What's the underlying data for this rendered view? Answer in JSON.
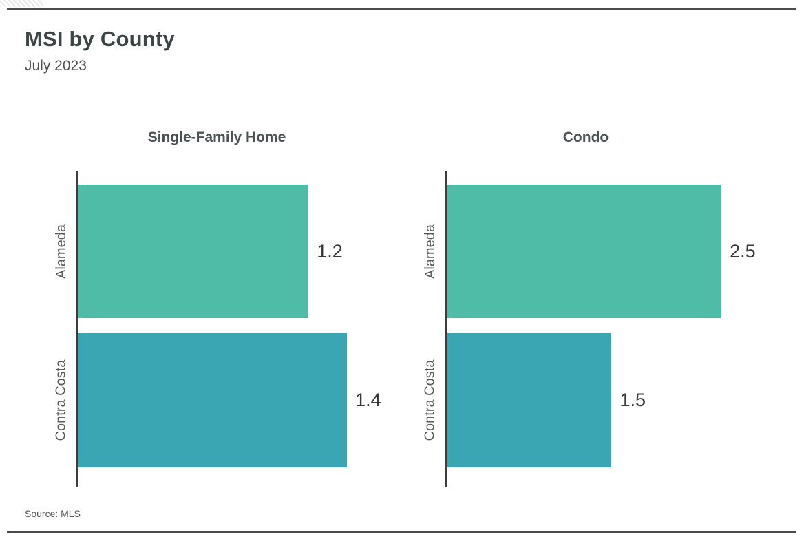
{
  "header": {
    "title": "MSI by County",
    "subtitle": "July 2023"
  },
  "footer": {
    "source": "Source: MLS"
  },
  "colors": {
    "bar_green": "#4fbca7",
    "bar_teal": "#3aa6b3",
    "axis": "#3d3d3d",
    "rule": "#4c4c4c",
    "title_text": "#3d4647",
    "label_text": "#595959",
    "value_text": "#383838"
  },
  "chart_data": [
    {
      "type": "bar",
      "orientation": "horizontal",
      "title": "Single-Family Home",
      "categories": [
        "Alameda",
        "Contra Costa"
      ],
      "values": [
        1.2,
        1.4
      ],
      "data_labels": [
        "1.2",
        "1.4"
      ],
      "bar_colors": [
        "#4fbca7",
        "#3aa6b3"
      ],
      "xlabel": "",
      "ylabel": "",
      "xlim": [
        0,
        1.6
      ],
      "grid": false,
      "legend": false
    },
    {
      "type": "bar",
      "orientation": "horizontal",
      "title": "Condo",
      "categories": [
        "Alameda",
        "Contra Costa"
      ],
      "values": [
        2.5,
        1.5
      ],
      "data_labels": [
        "2.5",
        "1.5"
      ],
      "bar_colors": [
        "#4fbca7",
        "#3aa6b3"
      ],
      "xlabel": "",
      "ylabel": "",
      "xlim": [
        0,
        2.8
      ],
      "grid": false,
      "legend": false
    }
  ]
}
